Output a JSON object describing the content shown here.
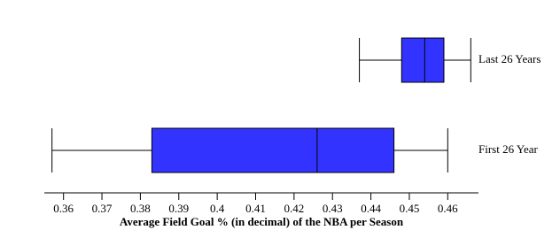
{
  "chart_data": {
    "type": "box",
    "xlabel": "Average Field Goal % (in decimal) of the NBA per Season",
    "categories": [
      "Last 26 Years",
      "First 26 Year"
    ],
    "boxes": [
      {
        "min": 0.437,
        "q1": 0.448,
        "median": 0.454,
        "q3": 0.459,
        "max": 0.466
      },
      {
        "min": 0.357,
        "q1": 0.383,
        "median": 0.426,
        "q3": 0.446,
        "max": 0.46
      }
    ],
    "color": "#3333ff",
    "xlim": [
      0.355,
      0.468
    ],
    "xticks": [
      0.36,
      0.37,
      0.38,
      0.39,
      0.4,
      0.41,
      0.42,
      0.43,
      0.44,
      0.45,
      0.46
    ]
  }
}
